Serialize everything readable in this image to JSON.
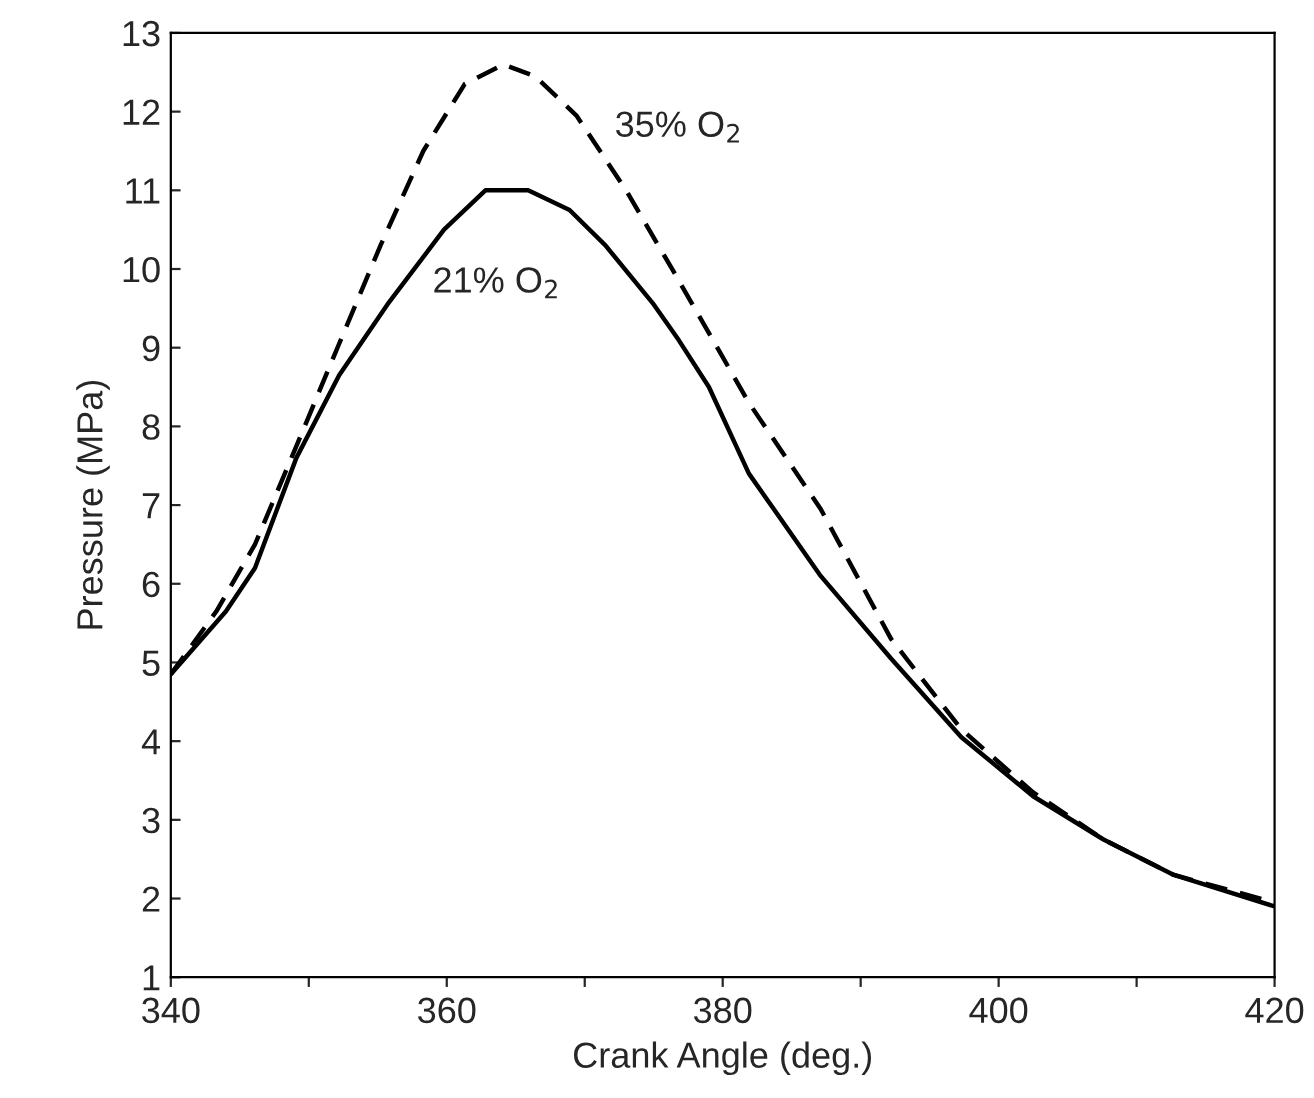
{
  "chart_data": {
    "type": "line",
    "xlabel": "Crank Angle (deg.)",
    "ylabel": "Pressure (MPa)",
    "xlim": [
      340,
      420
    ],
    "ylim": [
      1,
      13
    ],
    "xticks": [
      340,
      {
        "value": 350,
        "label": null
      },
      360,
      {
        "value": 370,
        "label": null
      },
      380,
      {
        "value": 390,
        "label": null
      },
      400,
      {
        "value": 410,
        "label": null
      },
      420
    ],
    "yticks": [
      1,
      2,
      3,
      4,
      5,
      6,
      7,
      8,
      9,
      10,
      11,
      12,
      13
    ],
    "grid": false,
    "legend": false,
    "series": [
      {
        "color": "#000000",
        "line_style": "solid",
        "x": [
          340,
          344,
          346.1,
          349.1,
          352.2,
          355.7,
          359.8,
          362.8,
          365.9,
          368.9,
          371.5,
          375,
          376.8,
          379,
          381.9,
          387.1,
          392.2,
          397.3,
          402.5,
          407.6,
          412.7,
          420
        ],
        "values": [
          4.85,
          5.65,
          6.2,
          7.6,
          8.65,
          9.55,
          10.5,
          11.0,
          11.0,
          10.75,
          10.3,
          9.55,
          9.1,
          8.5,
          7.4,
          6.1,
          5.05,
          4.05,
          3.3,
          2.75,
          2.3,
          1.9
        ]
      },
      {
        "color": "#000000",
        "line_style": "dashed",
        "x": [
          340,
          343.3,
          346.1,
          349.1,
          352.2,
          355.2,
          358.3,
          361.3,
          364.1,
          366.4,
          369.4,
          373,
          376.5,
          381.9,
          387.1,
          392.2,
          397.3,
          402.5,
          407.6,
          412.7,
          420
        ],
        "values": [
          4.85,
          5.65,
          6.5,
          7.75,
          9.05,
          10.3,
          11.5,
          12.35,
          12.6,
          12.45,
          11.95,
          11.0,
          9.95,
          8.3,
          6.95,
          5.3,
          4.15,
          3.35,
          2.75,
          2.3,
          1.95
        ]
      }
    ],
    "annotations": [
      "35% O$_{2}$",
      "21% O$_{2}$"
    ]
  }
}
